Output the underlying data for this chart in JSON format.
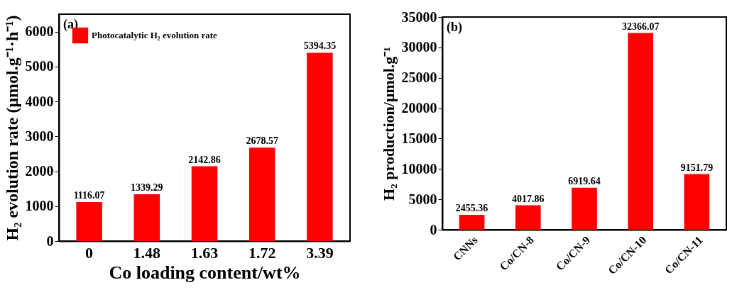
{
  "chart_data": [
    {
      "type": "bar",
      "xlabel": "Co loading content/wt%",
      "ylabel": "H₂ evolution rate (μmol.g⁻¹·h⁻¹)",
      "categories": [
        "0",
        "1.48",
        "1.63",
        "1.72",
        "3.39"
      ],
      "series": [
        {
          "name": "Photocatalytic H₂ evolution rate",
          "color": "#ff0000",
          "values": [
            1116.07,
            1339.29,
            2142.86,
            2678.57,
            5394.35
          ]
        }
      ],
      "ylim": [
        0,
        6500
      ],
      "yticks": [
        0,
        1000,
        2000,
        3000,
        4000,
        5000,
        6000
      ],
      "grid": false,
      "legend": "top left",
      "data_labels": true,
      "annotations": [
        "(a)"
      ]
    },
    {
      "type": "bar",
      "ylabel": "H₂ production/μmol.g⁻¹",
      "categories": [
        "CNNs",
        "Co/CN-8",
        "Co/CN-9",
        "Co/CN-10",
        "Co/CN-11"
      ],
      "series": [
        {
          "color": "#ff0000",
          "values": [
            2455.36,
            4017.86,
            6919.64,
            32366.07,
            9151.79
          ]
        }
      ],
      "ylim": [
        0,
        35000
      ],
      "yticks": [
        0,
        5000,
        10000,
        15000,
        20000,
        25000,
        30000,
        35000
      ],
      "grid": false,
      "data_labels": true,
      "annotations": [
        "(b)"
      ]
    }
  ]
}
